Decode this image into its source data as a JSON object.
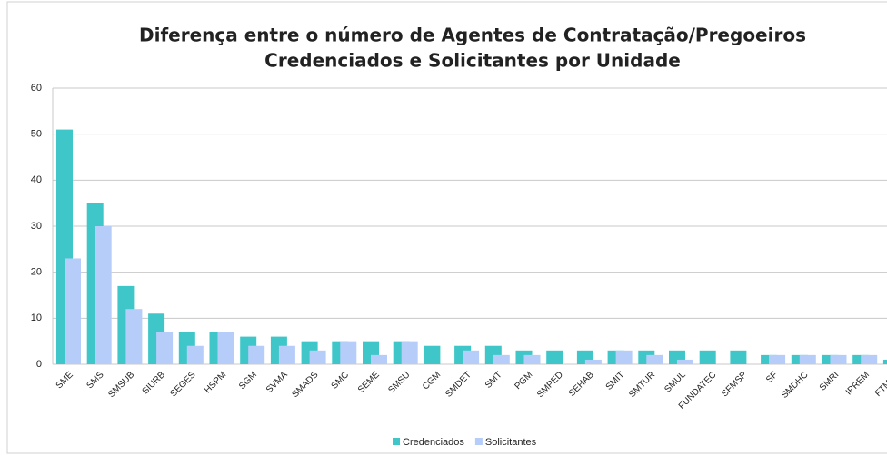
{
  "chart_data": {
    "type": "bar",
    "title": [
      "Diferença entre o número de Agentes de Contratação/Pregoeiros",
      "Credenciados e Solicitantes por Unidade"
    ],
    "categories": [
      "SME",
      "SMS",
      "SMSUB",
      "SIURB",
      "SEGES",
      "HSPM",
      "SGM",
      "SVMA",
      "SMADS",
      "SMC",
      "SEME",
      "SMSU",
      "CGM",
      "SMDET",
      "SMT",
      "PGM",
      "SMPED",
      "SEHAB",
      "SMIT",
      "SMTUR",
      "SMUL",
      "FUNDATEC",
      "SFMSP",
      "SF",
      "SMDHC",
      "SMRI",
      "IPREM",
      "FTMSP"
    ],
    "series": [
      {
        "name": "Credenciados",
        "color": "#3ec6c8",
        "values": [
          51,
          35,
          17,
          11,
          7,
          7,
          6,
          6,
          5,
          5,
          5,
          5,
          4,
          4,
          4,
          3,
          3,
          3,
          3,
          3,
          3,
          3,
          3,
          2,
          2,
          2,
          2,
          1
        ]
      },
      {
        "name": "Solicitantes",
        "color": "#b6cdfa",
        "values": [
          23,
          30,
          12,
          7,
          4,
          7,
          4,
          4,
          3,
          5,
          2,
          5,
          0,
          3,
          2,
          2,
          0,
          1,
          3,
          2,
          1,
          0,
          0,
          2,
          2,
          2,
          2,
          null
        ]
      }
    ],
    "ylim": [
      0,
      60
    ],
    "yticks": [
      0,
      10,
      20,
      30,
      40,
      50,
      60
    ],
    "grid": true,
    "legend": "bottom"
  }
}
